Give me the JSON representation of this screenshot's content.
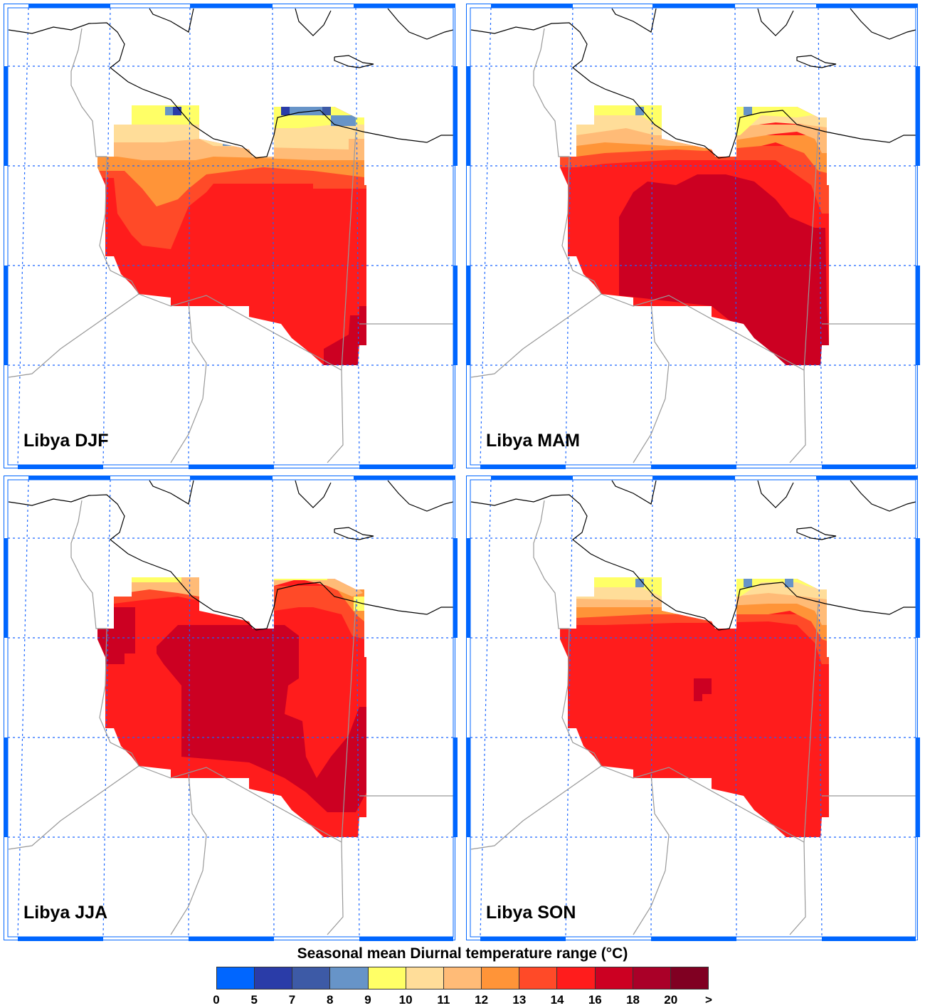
{
  "panels": [
    {
      "title": "Libya DJF",
      "season": "DJF"
    },
    {
      "title": "Libya MAM",
      "season": "MAM"
    },
    {
      "title": "Libya JJA",
      "season": "JJA"
    },
    {
      "title": "Libya SON",
      "season": "SON"
    }
  ],
  "colorbar": {
    "title": "Seasonal mean Diurnal temperature range (°C)",
    "labels": [
      "0",
      "5",
      "7",
      "8",
      "9",
      "10",
      "11",
      "12",
      "13",
      "14",
      "16",
      "18",
      "20",
      ">"
    ],
    "colors": [
      "#0066ff",
      "#2a3ca8",
      "#3d5aa6",
      "#6794c8",
      "#ffff66",
      "#ffdd99",
      "#ffbb77",
      "#ff9438",
      "#ff4a28",
      "#ff1c1c",
      "#cc0022",
      "#aa0028",
      "#800022"
    ]
  },
  "style": {
    "grid_color": "#1a66ff",
    "frame_color": "#0066ff",
    "coast_color": "#000000",
    "border_color": "#999999"
  }
}
